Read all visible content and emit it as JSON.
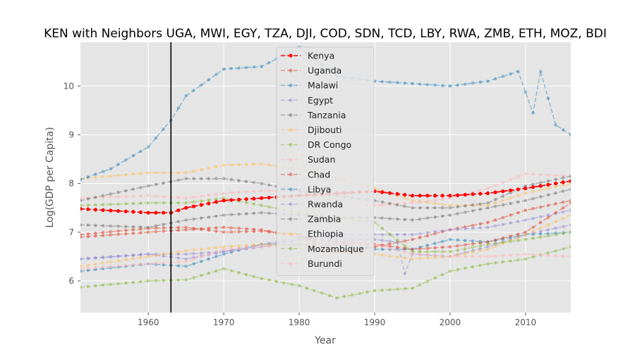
{
  "chart_data": {
    "type": "line",
    "title": "KEN with Neighbors UGA, MWI, EGY, TZA, DJI, COD, SDN, TCD, LBY, RWA, ZMB, ETH, MOZ, BDI",
    "xlabel": "Year",
    "ylabel": "Log(GDP per Capita)",
    "xlim": [
      1951,
      2016
    ],
    "ylim": [
      5.35,
      10.9
    ],
    "xticks": [
      1960,
      1970,
      1980,
      1990,
      2000,
      2010
    ],
    "yticks": [
      6,
      7,
      8,
      9,
      10
    ],
    "vline_year": 1963,
    "grid": true,
    "legend_position": "top-center",
    "series": [
      {
        "name": "Kenya",
        "color": "#ff0000",
        "highlight": true,
        "x": [
          1951,
          1960,
          1963,
          1965,
          1970,
          1975,
          1980,
          1985,
          1990,
          1995,
          2000,
          2005,
          2010,
          2016
        ],
        "y": [
          7.48,
          7.4,
          7.4,
          7.5,
          7.65,
          7.7,
          7.75,
          7.8,
          7.84,
          7.75,
          7.75,
          7.8,
          7.9,
          8.05
        ]
      },
      {
        "name": "Uganda",
        "color": "#e24a33",
        "x": [
          1951,
          1960,
          1965,
          1970,
          1975,
          1980,
          1985,
          1990,
          1995,
          2000,
          2005,
          2010,
          2016
        ],
        "y": [
          6.95,
          7.08,
          7.1,
          7.0,
          7.02,
          6.95,
          6.6,
          6.7,
          6.85,
          7.05,
          7.2,
          7.45,
          7.65
        ]
      },
      {
        "name": "Malawi",
        "color": "#348abd",
        "x": [
          1951,
          1960,
          1965,
          1970,
          1975,
          1980,
          1985,
          1990,
          1995,
          2000,
          2005,
          2010,
          2016
        ],
        "y": [
          6.2,
          6.35,
          6.3,
          6.55,
          6.75,
          6.75,
          6.75,
          6.65,
          6.65,
          6.85,
          6.8,
          6.95,
          7.0
        ]
      },
      {
        "name": "Egypt",
        "color": "#988ed5",
        "x": [
          1951,
          1960,
          1965,
          1970,
          1975,
          1980,
          1985,
          1990,
          1995,
          2000,
          2005,
          2010,
          2016
        ],
        "y": [
          6.45,
          6.55,
          6.45,
          6.6,
          6.7,
          6.85,
          6.95,
          6.95,
          6.95,
          7.05,
          7.1,
          7.25,
          7.45
        ]
      },
      {
        "name": "Tanzania",
        "color": "#777777",
        "x": [
          1951,
          1960,
          1965,
          1970,
          1975,
          1980,
          1985,
          1990,
          1995,
          2000,
          2005,
          2010,
          2016
        ],
        "y": [
          7.15,
          7.1,
          7.25,
          7.35,
          7.4,
          7.35,
          7.3,
          7.3,
          7.25,
          7.35,
          7.5,
          7.65,
          7.88
        ]
      },
      {
        "name": "Djibouti",
        "color": "#fbc15e",
        "x": [
          1951,
          1960,
          1965,
          1970,
          1975,
          1980,
          1985,
          1990,
          1995,
          2000,
          2005,
          2010,
          2016
        ],
        "y": [
          8.1,
          8.22,
          8.22,
          8.38,
          8.4,
          8.3,
          8.1,
          7.9,
          7.65,
          7.55,
          7.55,
          7.8,
          8.0
        ]
      },
      {
        "name": "DR Congo",
        "color": "#8eba42",
        "x": [
          1951,
          1960,
          1965,
          1970,
          1975,
          1980,
          1985,
          1990,
          1995,
          2000,
          2005,
          2010,
          2016
        ],
        "y": [
          5.87,
          6.0,
          6.02,
          6.25,
          6.05,
          5.9,
          5.65,
          5.8,
          5.85,
          6.2,
          6.35,
          6.45,
          6.7
        ]
      },
      {
        "name": "Sudan",
        "color": "#ffb5b8",
        "x": [
          1951,
          1960,
          1965,
          1970,
          1975,
          1980,
          1985,
          1990,
          1995,
          2000,
          2005,
          2010,
          2016
        ],
        "y": [
          7.7,
          7.75,
          7.7,
          7.8,
          7.85,
          7.85,
          7.65,
          7.55,
          7.6,
          7.7,
          7.9,
          8.2,
          8.15
        ]
      },
      {
        "name": "Chad",
        "color": "#e24a33",
        "x": [
          1951,
          1960,
          1965,
          1970,
          1975,
          1980,
          1985,
          1990,
          1995,
          2000,
          2005,
          2010,
          2016
        ],
        "y": [
          6.9,
          7.0,
          7.05,
          7.1,
          7.05,
          6.9,
          6.8,
          6.75,
          6.65,
          6.7,
          6.8,
          7.0,
          7.6
        ]
      },
      {
        "name": "Libya",
        "color": "#348abd",
        "x": [
          1951,
          1955,
          1960,
          1963,
          1965,
          1970,
          1975,
          1980,
          1985,
          1990,
          1995,
          2000,
          2005,
          2009,
          2011,
          2012,
          2014,
          2016
        ],
        "y": [
          8.08,
          8.3,
          8.75,
          9.3,
          9.8,
          10.35,
          10.4,
          10.8,
          10.2,
          10.1,
          10.05,
          10.0,
          10.1,
          10.3,
          9.45,
          10.3,
          9.2,
          9.0
        ]
      },
      {
        "name": "Rwanda",
        "color": "#988ed5",
        "x": [
          1951,
          1960,
          1965,
          1970,
          1975,
          1980,
          1985,
          1990,
          1993,
          1994,
          1995,
          2000,
          2005,
          2010,
          2016
        ],
        "y": [
          6.45,
          6.55,
          6.55,
          6.6,
          6.75,
          6.85,
          6.85,
          6.85,
          6.8,
          6.15,
          6.55,
          6.5,
          6.7,
          6.95,
          7.15
        ]
      },
      {
        "name": "Zambia",
        "color": "#777777",
        "x": [
          1951,
          1960,
          1965,
          1970,
          1975,
          1980,
          1985,
          1990,
          1995,
          2000,
          2005,
          2010,
          2016
        ],
        "y": [
          7.65,
          7.95,
          8.1,
          8.1,
          8.0,
          7.85,
          7.75,
          7.65,
          7.5,
          7.5,
          7.6,
          7.95,
          8.15
        ]
      },
      {
        "name": "Ethiopia",
        "color": "#fbc15e",
        "x": [
          1951,
          1960,
          1965,
          1970,
          1975,
          1980,
          1985,
          1990,
          1995,
          2000,
          2005,
          2010,
          2016
        ],
        "y": [
          6.3,
          6.5,
          6.62,
          6.7,
          6.75,
          6.72,
          6.6,
          6.55,
          6.45,
          6.5,
          6.65,
          6.95,
          7.35
        ]
      },
      {
        "name": "Mozambique",
        "color": "#8eba42",
        "x": [
          1951,
          1960,
          1965,
          1970,
          1975,
          1980,
          1985,
          1990,
          1995,
          2000,
          2005,
          2010,
          2016
        ],
        "y": [
          7.55,
          7.6,
          7.6,
          7.7,
          7.55,
          7.4,
          7.3,
          7.2,
          6.6,
          6.6,
          6.75,
          6.85,
          7.0
        ]
      },
      {
        "name": "Burundi",
        "color": "#ffb5b8",
        "x": [
          1951,
          1960,
          1965,
          1970,
          1975,
          1980,
          1985,
          1990,
          1995,
          2000,
          2005,
          2010,
          2016
        ],
        "y": [
          6.25,
          6.35,
          6.4,
          6.65,
          6.7,
          6.75,
          6.75,
          6.75,
          6.55,
          6.5,
          6.5,
          6.55,
          6.5
        ]
      }
    ]
  }
}
